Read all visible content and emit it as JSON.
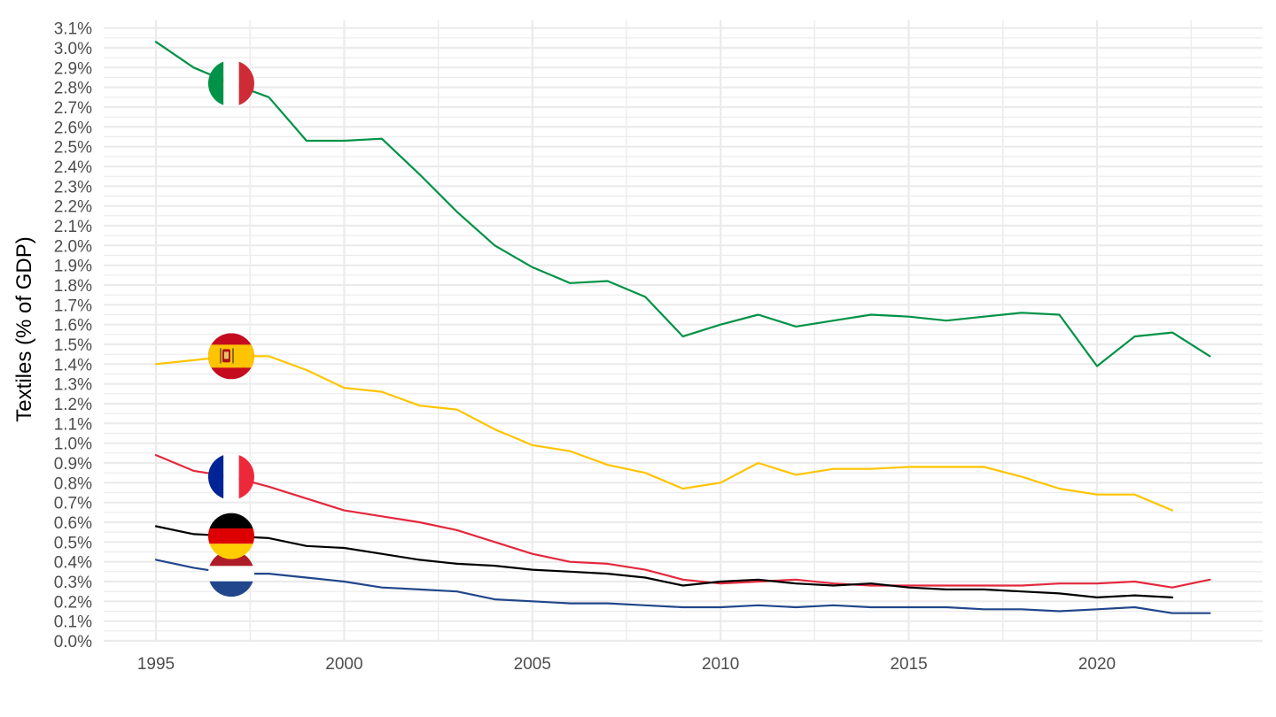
{
  "chart_data": {
    "type": "line",
    "title": "",
    "xlabel": "",
    "ylabel": "Textiles (% of GDP)",
    "xlim": [
      1993.6,
      2024.4
    ],
    "ylim": [
      0.0,
      3.1
    ],
    "x_ticks": [
      "1995",
      "2000",
      "2005",
      "2010",
      "2015",
      "2020"
    ],
    "y_ticks": [
      "0.0%",
      "0.1%",
      "0.2%",
      "0.3%",
      "0.4%",
      "0.5%",
      "0.6%",
      "0.7%",
      "0.8%",
      "0.9%",
      "1.0%",
      "1.1%",
      "1.2%",
      "1.3%",
      "1.4%",
      "1.5%",
      "1.6%",
      "1.7%",
      "1.8%",
      "1.9%",
      "2.0%",
      "2.1%",
      "2.2%",
      "2.3%",
      "2.4%",
      "2.5%",
      "2.6%",
      "2.7%",
      "2.8%",
      "2.9%",
      "3.0%",
      "3.1%"
    ],
    "grid": true,
    "legend": "flag icons placed on lines near x=1997",
    "series": [
      {
        "flag": "italy-flag-icon",
        "color": "#009246",
        "x": [
          1995,
          1996,
          1997,
          1998,
          1999,
          2000,
          2001,
          2002,
          2003,
          2004,
          2005,
          2006,
          2007,
          2008,
          2009,
          2010,
          2011,
          2012,
          2013,
          2014,
          2015,
          2016,
          2017,
          2018,
          2019,
          2020,
          2021,
          2022,
          2023
        ],
        "values": [
          3.03,
          2.9,
          2.82,
          2.75,
          2.53,
          2.53,
          2.54,
          2.36,
          2.17,
          2.0,
          1.89,
          1.81,
          1.82,
          1.74,
          1.54,
          1.6,
          1.65,
          1.59,
          1.62,
          1.65,
          1.64,
          1.62,
          1.64,
          1.66,
          1.65,
          1.39,
          1.54,
          1.56,
          1.44
        ]
      },
      {
        "flag": "spain-flag-icon",
        "color": "#FFC400",
        "x": [
          1995,
          1996,
          1997,
          1998,
          1999,
          2000,
          2001,
          2002,
          2003,
          2004,
          2005,
          2006,
          2007,
          2008,
          2009,
          2010,
          2011,
          2012,
          2013,
          2014,
          2015,
          2016,
          2017,
          2018,
          2019,
          2020,
          2021,
          2022
        ],
        "values": [
          1.4,
          1.42,
          1.44,
          1.44,
          1.37,
          1.28,
          1.26,
          1.19,
          1.17,
          1.07,
          0.99,
          0.96,
          0.89,
          0.85,
          0.77,
          0.8,
          0.9,
          0.84,
          0.87,
          0.87,
          0.88,
          0.88,
          0.88,
          0.83,
          0.77,
          0.74,
          0.74,
          0.66
        ]
      },
      {
        "flag": "france-flag-icon",
        "color": "#E4283D",
        "x": [
          1995,
          1996,
          1997,
          1998,
          1999,
          2000,
          2001,
          2002,
          2003,
          2004,
          2005,
          2006,
          2007,
          2008,
          2009,
          2010,
          2011,
          2012,
          2013,
          2014,
          2015,
          2016,
          2017,
          2018,
          2019,
          2020,
          2021,
          2022,
          2023
        ],
        "values": [
          0.94,
          0.86,
          0.83,
          0.78,
          0.72,
          0.66,
          0.63,
          0.6,
          0.56,
          0.5,
          0.44,
          0.4,
          0.39,
          0.36,
          0.31,
          0.29,
          0.3,
          0.31,
          0.29,
          0.28,
          0.28,
          0.28,
          0.28,
          0.28,
          0.29,
          0.29,
          0.3,
          0.27,
          0.31
        ]
      },
      {
        "flag": "germany-flag-icon",
        "color": "#000000",
        "x": [
          1995,
          1996,
          1997,
          1998,
          1999,
          2000,
          2001,
          2002,
          2003,
          2004,
          2005,
          2006,
          2007,
          2008,
          2009,
          2010,
          2011,
          2012,
          2013,
          2014,
          2015,
          2016,
          2017,
          2018,
          2019,
          2020,
          2021,
          2022
        ],
        "values": [
          0.58,
          0.54,
          0.53,
          0.52,
          0.48,
          0.47,
          0.44,
          0.41,
          0.39,
          0.38,
          0.36,
          0.35,
          0.34,
          0.32,
          0.28,
          0.3,
          0.31,
          0.29,
          0.28,
          0.29,
          0.27,
          0.26,
          0.26,
          0.25,
          0.24,
          0.22,
          0.23,
          0.22
        ]
      },
      {
        "flag": "netherlands-flag-icon",
        "color": "#21468B",
        "x": [
          1995,
          1996,
          1997,
          1998,
          1999,
          2000,
          2001,
          2002,
          2003,
          2004,
          2005,
          2006,
          2007,
          2008,
          2009,
          2010,
          2011,
          2012,
          2013,
          2014,
          2015,
          2016,
          2017,
          2018,
          2019,
          2020,
          2021,
          2022,
          2023
        ],
        "values": [
          0.41,
          0.37,
          0.34,
          0.34,
          0.32,
          0.3,
          0.27,
          0.26,
          0.25,
          0.21,
          0.2,
          0.19,
          0.19,
          0.18,
          0.17,
          0.17,
          0.18,
          0.17,
          0.18,
          0.17,
          0.17,
          0.17,
          0.16,
          0.16,
          0.15,
          0.16,
          0.17,
          0.14,
          0.14
        ]
      }
    ],
    "flag_labels": [
      {
        "flag": "italy-flag-icon",
        "x": 1997,
        "y": 2.82
      },
      {
        "flag": "spain-flag-icon",
        "x": 1997,
        "y": 1.44
      },
      {
        "flag": "france-flag-icon",
        "x": 1997,
        "y": 0.83
      },
      {
        "flag": "germany-flag-icon",
        "x": 1997,
        "y": 0.53
      },
      {
        "flag": "netherlands-flag-icon",
        "x": 1997,
        "y": 0.34
      }
    ]
  }
}
